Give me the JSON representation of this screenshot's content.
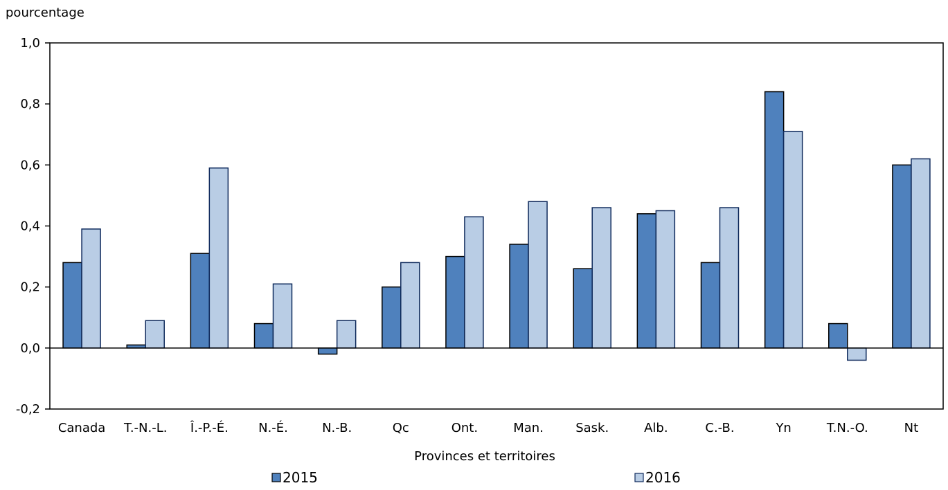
{
  "chart_data": {
    "type": "bar",
    "title": "",
    "ylabel": "pourcentage",
    "xlabel": "Provinces et territoires",
    "ylim": [
      -0.2,
      1.0
    ],
    "yticks": [
      -0.2,
      0.0,
      0.2,
      0.4,
      0.6,
      0.8,
      1.0
    ],
    "ytick_labels": [
      "-0,2",
      "0,0",
      "0,2",
      "0,4",
      "0,6",
      "0,8",
      "1,0"
    ],
    "categories": [
      "Canada",
      "T.-N.-L.",
      "Î.-P.-É.",
      "N.-É.",
      "N.-B.",
      "Qc",
      "Ont.",
      "Man.",
      "Sask.",
      "Alb.",
      "C.-B.",
      "Yn",
      "T.N.-O.",
      "Nt"
    ],
    "series": [
      {
        "name": "2015",
        "color": "#4f81bd",
        "values": [
          0.28,
          0.01,
          0.31,
          0.08,
          -0.02,
          0.2,
          0.3,
          0.34,
          0.26,
          0.44,
          0.28,
          0.84,
          0.08,
          0.6
        ]
      },
      {
        "name": "2016",
        "color": "#b9cde5",
        "values": [
          0.39,
          0.09,
          0.59,
          0.21,
          0.09,
          0.28,
          0.43,
          0.48,
          0.46,
          0.45,
          0.46,
          0.71,
          -0.04,
          0.62
        ]
      }
    ],
    "grid": false,
    "legend_position": "bottom"
  }
}
